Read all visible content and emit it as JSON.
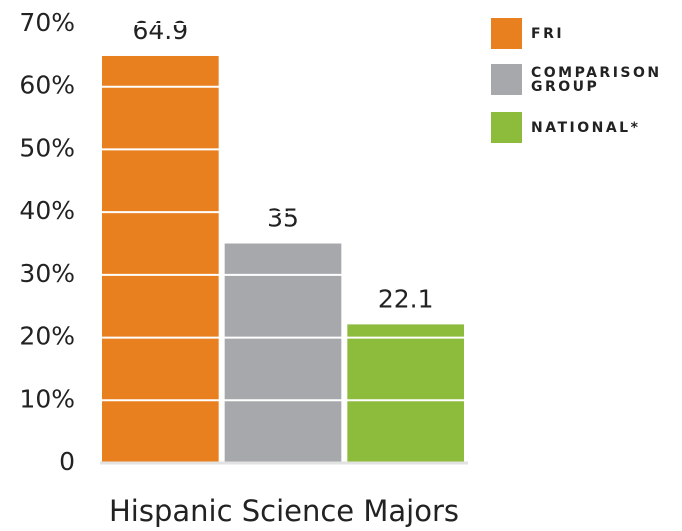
{
  "chart_data": {
    "type": "bar",
    "categories": [
      "Hispanic Science Majors"
    ],
    "series": [
      {
        "name": "FRI",
        "color": "#e8801f",
        "values": [
          64.9
        ]
      },
      {
        "name": "COMPARISON GROUP",
        "color": "#a7a8ab",
        "values": [
          35
        ]
      },
      {
        "name": "NATIONAL*",
        "color": "#8dbb3c",
        "values": [
          22.1
        ]
      }
    ],
    "ylim": [
      0,
      70
    ],
    "yticks": [
      0,
      {
        "value": 10,
        "label": "10%"
      },
      {
        "value": 20,
        "label": "20%"
      },
      {
        "value": 30,
        "label": "30%"
      },
      {
        "value": 40,
        "label": "40%"
      },
      {
        "value": 50,
        "label": "50%"
      },
      {
        "value": 60,
        "label": "60%"
      },
      {
        "value": 70,
        "label": "70%"
      }
    ],
    "grid": true,
    "legend": "top-right"
  }
}
